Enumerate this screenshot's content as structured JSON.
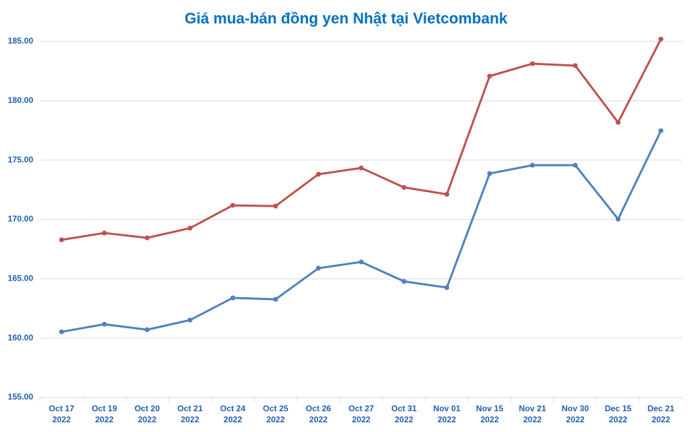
{
  "chart_data": {
    "type": "line",
    "title": "Giá mua-bán đồng yen Nhật tại Vietcombank",
    "categories": [
      [
        "Oct 17",
        "2022"
      ],
      [
        "Oct 19",
        "2022"
      ],
      [
        "Oct 20",
        "2022"
      ],
      [
        "Oct 21",
        "2022"
      ],
      [
        "Oct 24",
        "2022"
      ],
      [
        "Oct 25",
        "2022"
      ],
      [
        "Oct 26",
        "2022"
      ],
      [
        "Oct 27",
        "2022"
      ],
      [
        "Oct 31",
        "2022"
      ],
      [
        "Nov 01",
        "2022"
      ],
      [
        "Nov 15",
        "2022"
      ],
      [
        "Nov 21",
        "2022"
      ],
      [
        "Nov 30",
        "2022"
      ],
      [
        "Dec 15",
        "2022"
      ],
      [
        "Dec 21",
        "2022"
      ]
    ],
    "series": [
      {
        "color": "#c0504d",
        "values": [
          168.28,
          168.86,
          168.45,
          169.27,
          171.19,
          171.13,
          173.81,
          174.34,
          172.7,
          172.12,
          182.08,
          183.13,
          182.96,
          178.18,
          185.2
        ]
      },
      {
        "color": "#4f81bd",
        "values": [
          160.53,
          161.17,
          160.71,
          161.52,
          163.39,
          163.27,
          165.89,
          166.42,
          164.78,
          164.26,
          173.87,
          174.57,
          174.57,
          170.03,
          177.48
        ]
      }
    ],
    "ylim": [
      155,
      185
    ],
    "yticks": [
      {
        "value": 155,
        "label": "155.00"
      },
      {
        "value": 160,
        "label": "160.00"
      },
      {
        "value": 165,
        "label": "165.00"
      },
      {
        "value": 170,
        "label": "170.00"
      },
      {
        "value": 175,
        "label": "175.00"
      },
      {
        "value": 180,
        "label": "180.00"
      },
      {
        "value": 185,
        "label": "185.00"
      }
    ],
    "grid": true
  }
}
